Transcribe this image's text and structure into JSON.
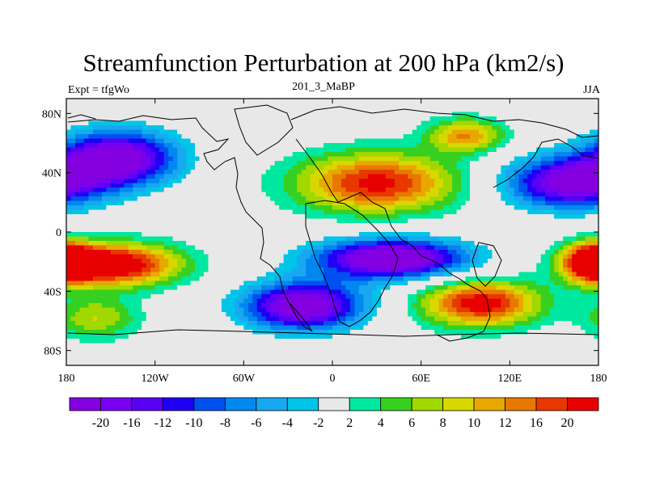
{
  "chart_data": {
    "type": "contour-map",
    "title": "Streamfunction Perturbation at 200 hPa (km2/s)",
    "left_label": "Expt = tfgWo",
    "center_label": "201_3_MaBP",
    "right_label": "JJA",
    "x_ticks": [
      "180",
      "120W",
      "60W",
      "0",
      "60E",
      "120E",
      "180"
    ],
    "x_tick_values": [
      -180,
      -120,
      -60,
      0,
      60,
      120,
      180
    ],
    "y_ticks": [
      "80N",
      "40N",
      "0",
      "40S",
      "80S"
    ],
    "y_tick_values": [
      80,
      40,
      0,
      -40,
      -80
    ],
    "xlim": [
      -180,
      180
    ],
    "ylim": [
      -90,
      90
    ],
    "contour_levels": [
      -20,
      -18,
      -16,
      -14,
      -12,
      -10,
      -8,
      -6,
      -4,
      -2,
      2,
      4,
      6,
      8,
      10,
      12,
      14,
      16,
      20
    ],
    "colorbar_labels": [
      "-20",
      "-16",
      "-12",
      "-10",
      "-8",
      "-6",
      "-4",
      "-2",
      "2",
      "4",
      "6",
      "8",
      "10",
      "12",
      "16",
      "20"
    ],
    "colors": [
      "#8400e0",
      "#7800ee",
      "#5a00f5",
      "#2000f5",
      "#0050f0",
      "#0088f0",
      "#18a8f0",
      "#00c4e8",
      "#e8e8e8",
      "#00e8a0",
      "#38d020",
      "#a0d800",
      "#d8d800",
      "#e8a800",
      "#e87800",
      "#e83800",
      "#e80000"
    ],
    "anomalies": [
      {
        "lon": -145,
        "lat": 50,
        "amp": -20,
        "sx": 30,
        "sy": 14
      },
      {
        "lon": -150,
        "lat": -22,
        "amp": 21,
        "sx": 32,
        "sy": 10
      },
      {
        "lon": -160,
        "lat": -58,
        "amp": 8,
        "sx": 20,
        "sy": 10
      },
      {
        "lon": -20,
        "lat": -50,
        "amp": -21,
        "sx": 30,
        "sy": 12
      },
      {
        "lon": 30,
        "lat": 33,
        "amp": 17,
        "sx": 38,
        "sy": 14
      },
      {
        "lon": 90,
        "lat": 65,
        "amp": 12,
        "sx": 18,
        "sy": 8
      },
      {
        "lon": 40,
        "lat": -18,
        "amp": -22,
        "sx": 38,
        "sy": 10
      },
      {
        "lon": 100,
        "lat": -48,
        "amp": 18,
        "sx": 28,
        "sy": 11
      },
      {
        "lon": 160,
        "lat": 33,
        "amp": -19,
        "sx": 32,
        "sy": 13
      },
      {
        "lon": 178,
        "lat": -20,
        "amp": 20,
        "sx": 14,
        "sy": 9
      }
    ]
  }
}
